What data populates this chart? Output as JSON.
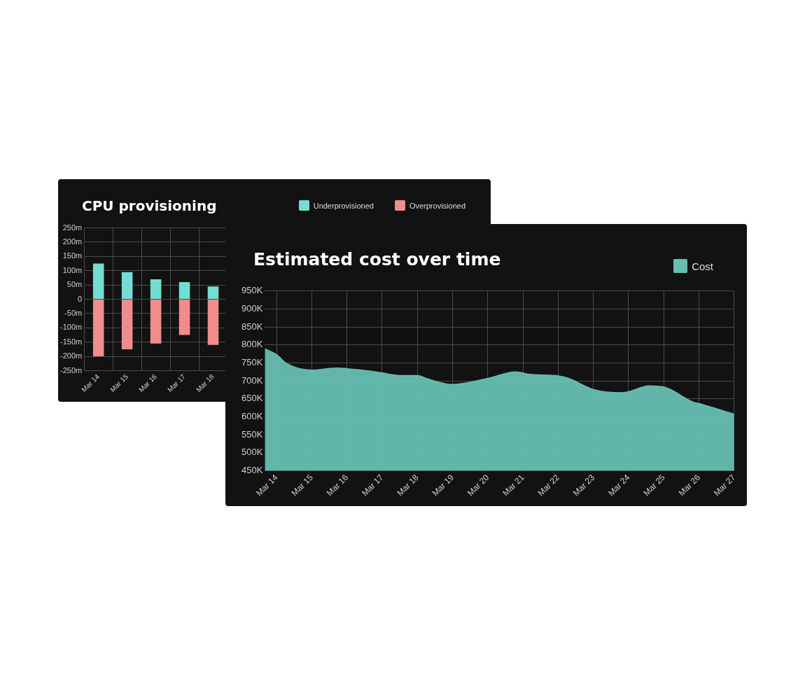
{
  "chart_data": [
    {
      "type": "bar",
      "title": "CPU provisioning",
      "stacked": true,
      "categories": [
        "Mar 14",
        "Mar 15",
        "Mar 16",
        "Mar 17",
        "Mar 18"
      ],
      "series": [
        {
          "name": "Underprovisioned",
          "color": "#72ded3",
          "values": [
            125,
            95,
            70,
            60,
            45
          ]
        },
        {
          "name": "Overprovisioned",
          "color": "#f28b8b",
          "values": [
            -200,
            -175,
            -155,
            -125,
            -160
          ]
        }
      ],
      "ylim": [
        -250,
        250
      ],
      "yticks": [
        {
          "value": 250,
          "label": "250m"
        },
        {
          "value": 200,
          "label": "200m"
        },
        {
          "value": 150,
          "label": "150m"
        },
        {
          "value": 100,
          "label": "100m"
        },
        {
          "value": 50,
          "label": "50m"
        },
        0,
        {
          "value": -50,
          "label": "-50m"
        },
        {
          "value": -100,
          "label": "-100m"
        },
        {
          "value": -150,
          "label": "-150m"
        },
        {
          "value": -200,
          "label": "-200m"
        },
        {
          "value": -250,
          "label": "-250m"
        }
      ],
      "grid": true,
      "legend": "top right"
    },
    {
      "type": "area",
      "title": "Estimated cost over time",
      "series": [
        {
          "name": "Cost",
          "color": "#66bfb2",
          "x": [
            "--03-13T16:00",
            "--03-14",
            "--03-14T07:00",
            "--03-15",
            "--03-15T17:00",
            "--03-16",
            "--03-16T16:00",
            "--03-17",
            "--03-17T12:00",
            "--03-18",
            "--03-18T06:00",
            "--03-18T18:00",
            "--03-19",
            "--03-20",
            "--03-20T19:00",
            "--03-21T05:00",
            "--03-22",
            "--03-22T07:00",
            "--03-23",
            "--03-23T19:00",
            "--03-24",
            "--03-24T14:00",
            "--03-25",
            "--03-25T20:00",
            "--03-26",
            "--03-27"
          ],
          "values": [
            789,
            773,
            748,
            730,
            736,
            734,
            727,
            722,
            715,
            715,
            707,
            693,
            690,
            707,
            725,
            718,
            714,
            707,
            676,
            667,
            670,
            686,
            683,
            641,
            637,
            607
          ]
        }
      ],
      "xlim": [
        "--03-13T16:00",
        "--03-27"
      ],
      "xticks": [
        {
          "value": "--03-14",
          "label": "Mar 14"
        },
        {
          "value": "--03-15",
          "label": "Mar 15"
        },
        {
          "value": "--03-16",
          "label": "Mar 16"
        },
        {
          "value": "--03-17",
          "label": "Mar 17"
        },
        {
          "value": "--03-18",
          "label": "Mar 18"
        },
        {
          "value": "--03-19",
          "label": "Mar 19"
        },
        {
          "value": "--03-20",
          "label": "Mar 20"
        },
        {
          "value": "--03-21",
          "label": "Mar 21"
        },
        {
          "value": "--03-22",
          "label": "Mar 22"
        },
        {
          "value": "--03-23",
          "label": "Mar 23"
        },
        {
          "value": "--03-24",
          "label": "Mar 24"
        },
        {
          "value": "--03-25",
          "label": "Mar 25"
        },
        {
          "value": "--03-26",
          "label": "Mar 26"
        },
        {
          "value": "--03-27",
          "label": "Mar 27"
        }
      ],
      "ylim": [
        450,
        950
      ],
      "yticks": [
        {
          "value": 950,
          "label": "950K"
        },
        {
          "value": 900,
          "label": "900K"
        },
        {
          "value": 850,
          "label": "850K"
        },
        {
          "value": 800,
          "label": "800K"
        },
        {
          "value": 750,
          "label": "750K"
        },
        {
          "value": 700,
          "label": "700K"
        },
        {
          "value": 650,
          "label": "650K"
        },
        {
          "value": 600,
          "label": "600K"
        },
        {
          "value": 550,
          "label": "550K"
        },
        {
          "value": 500,
          "label": "500K"
        },
        {
          "value": 450,
          "label": "450K"
        }
      ],
      "grid": true,
      "legend": "top right"
    }
  ]
}
